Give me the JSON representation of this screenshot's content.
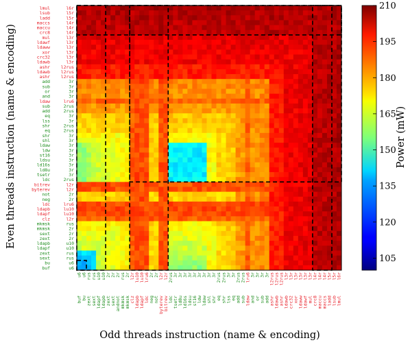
{
  "chart_data": {
    "type": "heatmap",
    "title": "",
    "xlabel": "Odd threads instruction (name & encoding)",
    "ylabel": "Even threads instruction (name & encoding)",
    "colorbar_label": "Power (mW)",
    "colorbar_range": [
      100,
      210
    ],
    "colorbar_ticks": [
      "105",
      "120",
      "135",
      "150",
      "165",
      "180",
      "195",
      "210"
    ],
    "colormap": "jet",
    "colors": {
      "group_a": "#e8202a",
      "group_b": "#1c8c1c",
      "dashed_box": "#000000"
    },
    "grid": false,
    "y_tick_labels_top_to_bottom": [
      {
        "name": "lmul",
        "enc": "l6r",
        "group": "a"
      },
      {
        "name": "lsub",
        "enc": "l5r",
        "group": "a"
      },
      {
        "name": "ladd",
        "enc": "l5r",
        "group": "a"
      },
      {
        "name": "maccs",
        "enc": "l4r",
        "group": "a"
      },
      {
        "name": "maccu",
        "enc": "l4r",
        "group": "a"
      },
      {
        "name": "crc8",
        "enc": "l4r",
        "group": "a"
      },
      {
        "name": "mul",
        "enc": "l3r",
        "group": "a"
      },
      {
        "name": "ldawf",
        "enc": "l3r",
        "group": "a"
      },
      {
        "name": "ldaww",
        "enc": "l3r",
        "group": "a"
      },
      {
        "name": "xor",
        "enc": "l3r",
        "group": "a"
      },
      {
        "name": "crc32",
        "enc": "l3r",
        "group": "a"
      },
      {
        "name": "ldawb",
        "enc": "l3r",
        "group": "a"
      },
      {
        "name": "ashr",
        "enc": "l2rus",
        "group": "a"
      },
      {
        "name": "ldawb",
        "enc": "l2rus",
        "group": "a"
      },
      {
        "name": "ashr",
        "enc": "l2rus",
        "group": "a"
      },
      {
        "name": "add",
        "enc": "3r",
        "group": "b"
      },
      {
        "name": "sub",
        "enc": "3r",
        "group": "b"
      },
      {
        "name": "or",
        "enc": "3r",
        "group": "b"
      },
      {
        "name": "and",
        "enc": "3r",
        "group": "b"
      },
      {
        "name": "ldaw",
        "enc": "lru6",
        "group": "a"
      },
      {
        "name": "sub",
        "enc": "2rus",
        "group": "b"
      },
      {
        "name": "add",
        "enc": "2rus",
        "group": "b"
      },
      {
        "name": "eq",
        "enc": "3r",
        "group": "b"
      },
      {
        "name": "lss",
        "enc": "3r",
        "group": "b"
      },
      {
        "name": "shr",
        "enc": "2rus",
        "group": "b"
      },
      {
        "name": "eq",
        "enc": "2rus",
        "group": "b"
      },
      {
        "name": "shr",
        "enc": "3r",
        "group": "b"
      },
      {
        "name": "shl",
        "enc": "3r",
        "group": "b"
      },
      {
        "name": "ldaw",
        "enc": "3r",
        "group": "b"
      },
      {
        "name": "ldw",
        "enc": "3r",
        "group": "b"
      },
      {
        "name": "st16",
        "enc": "3r",
        "group": "b"
      },
      {
        "name": "ldsu",
        "enc": "3r",
        "group": "b"
      },
      {
        "name": "ld16s",
        "enc": "3r",
        "group": "b"
      },
      {
        "name": "ld8u",
        "enc": "3r",
        "group": "b"
      },
      {
        "name": "tsetr",
        "enc": "3r",
        "group": "b"
      },
      {
        "name": "ldc",
        "enc": "2rus",
        "group": "b"
      },
      {
        "name": "bitrev",
        "enc": "l2r",
        "group": "a"
      },
      {
        "name": "byterev",
        "enc": "l2r",
        "group": "a"
      },
      {
        "name": "not",
        "enc": "2r",
        "group": "b"
      },
      {
        "name": "neg",
        "enc": "2r",
        "group": "b"
      },
      {
        "name": "ldc",
        "enc": "lru6",
        "group": "a"
      },
      {
        "name": "ldapb",
        "enc": "lu10",
        "group": "a"
      },
      {
        "name": "ldapf",
        "enc": "lu10",
        "group": "a"
      },
      {
        "name": "clz",
        "enc": "l2r",
        "group": "a"
      },
      {
        "name": "mkmsk",
        "enc": "rus",
        "group": "b"
      },
      {
        "name": "mkmsk",
        "enc": "2r",
        "group": "b"
      },
      {
        "name": "sext",
        "enc": "2r",
        "group": "b"
      },
      {
        "name": "zext",
        "enc": "2r",
        "group": "b"
      },
      {
        "name": "ldapb",
        "enc": "u10",
        "group": "b"
      },
      {
        "name": "ldapf",
        "enc": "u10",
        "group": "b"
      },
      {
        "name": "zext",
        "enc": "rus",
        "group": "b"
      },
      {
        "name": "sext",
        "enc": "rus",
        "group": "b"
      },
      {
        "name": "bu",
        "enc": "u6",
        "group": "b"
      },
      {
        "name": "buf",
        "enc": "u6",
        "group": "b"
      }
    ],
    "x_tick_labels_left_to_right": [
      {
        "name": "buf",
        "enc": "u6",
        "group": "b"
      },
      {
        "name": "bu",
        "enc": "u6",
        "group": "b"
      },
      {
        "name": "zext",
        "enc": "rus",
        "group": "b"
      },
      {
        "name": "sext",
        "enc": "rus",
        "group": "b"
      },
      {
        "name": "ldapf",
        "enc": "u10",
        "group": "b"
      },
      {
        "name": "ldapb",
        "enc": "u10",
        "group": "b"
      },
      {
        "name": "zext",
        "enc": "2r",
        "group": "b"
      },
      {
        "name": "sext",
        "enc": "2r",
        "group": "b"
      },
      {
        "name": "andnot",
        "enc": "2r",
        "group": "b"
      },
      {
        "name": "mkmsk",
        "enc": "rus",
        "group": "b"
      },
      {
        "name": "mkmsk",
        "enc": "2r",
        "group": "b"
      },
      {
        "name": "clz",
        "enc": "l2r",
        "group": "a"
      },
      {
        "name": "ldapb",
        "enc": "lu10",
        "group": "a"
      },
      {
        "name": "ldapf",
        "enc": "lu10",
        "group": "a"
      },
      {
        "name": "ldc",
        "enc": "lru6",
        "group": "a"
      },
      {
        "name": "neg",
        "enc": "2r",
        "group": "b"
      },
      {
        "name": "not",
        "enc": "2r",
        "group": "b"
      },
      {
        "name": "byterev",
        "enc": "l2r",
        "group": "a"
      },
      {
        "name": "bitrev",
        "enc": "l2r",
        "group": "a"
      },
      {
        "name": "ldc",
        "enc": "2rus",
        "group": "b"
      },
      {
        "name": "tsetr",
        "enc": "3r",
        "group": "b"
      },
      {
        "name": "ld8u",
        "enc": "3r",
        "group": "b"
      },
      {
        "name": "ld16s",
        "enc": "3r",
        "group": "b"
      },
      {
        "name": "ldsu",
        "enc": "3r",
        "group": "b"
      },
      {
        "name": "st16",
        "enc": "3r",
        "group": "b"
      },
      {
        "name": "ldw",
        "enc": "3r",
        "group": "b"
      },
      {
        "name": "ldaw",
        "enc": "3r",
        "group": "b"
      },
      {
        "name": "shl",
        "enc": "3r",
        "group": "b"
      },
      {
        "name": "shr",
        "enc": "3r",
        "group": "b"
      },
      {
        "name": "eq",
        "enc": "2rus",
        "group": "b"
      },
      {
        "name": "shr",
        "enc": "2rus",
        "group": "b"
      },
      {
        "name": "lss",
        "enc": "3r",
        "group": "b"
      },
      {
        "name": "eq",
        "enc": "3r",
        "group": "b"
      },
      {
        "name": "add",
        "enc": "2rus",
        "group": "b"
      },
      {
        "name": "sub",
        "enc": "2rus",
        "group": "b"
      },
      {
        "name": "ldaw",
        "enc": "lru6",
        "group": "a"
      },
      {
        "name": "and",
        "enc": "3r",
        "group": "b"
      },
      {
        "name": "or",
        "enc": "3r",
        "group": "b"
      },
      {
        "name": "sub",
        "enc": "3r",
        "group": "b"
      },
      {
        "name": "add",
        "enc": "3r",
        "group": "b"
      },
      {
        "name": "ashr",
        "enc": "l2rus",
        "group": "a"
      },
      {
        "name": "ldawb",
        "enc": "l2rus",
        "group": "a"
      },
      {
        "name": "ashr",
        "enc": "l2rus",
        "group": "a"
      },
      {
        "name": "ldawb",
        "enc": "l3r",
        "group": "a"
      },
      {
        "name": "crc32",
        "enc": "l3r",
        "group": "a"
      },
      {
        "name": "xor",
        "enc": "l3r",
        "group": "a"
      },
      {
        "name": "ldaww",
        "enc": "l3r",
        "group": "a"
      },
      {
        "name": "ldawf",
        "enc": "l3r",
        "group": "a"
      },
      {
        "name": "mul",
        "enc": "l3r",
        "group": "a"
      },
      {
        "name": "crc8",
        "enc": "l4r",
        "group": "a"
      },
      {
        "name": "maccu",
        "enc": "l4r",
        "group": "a"
      },
      {
        "name": "maccs",
        "enc": "l4r",
        "group": "a"
      },
      {
        "name": "ladd",
        "enc": "l5r",
        "group": "a"
      },
      {
        "name": "lsub",
        "enc": "l5r",
        "group": "a"
      },
      {
        "name": "lmul",
        "enc": "l6r",
        "group": "a"
      }
    ],
    "description_of_values": "Power in mW, approx 105-210. Rows/cols of the l3r-l6r group (top/right) ~195-210; 3r memory/compare group ~140-150; branch/ext group ~110-160.",
    "row_levels_top_to_bottom": [
      207,
      206,
      206,
      205,
      205,
      205,
      201,
      200,
      200,
      199,
      199,
      199,
      195,
      195,
      195,
      183,
      183,
      182,
      182,
      187,
      181,
      181,
      176,
      176,
      174,
      175,
      170,
      170,
      147,
      146,
      145,
      145,
      144,
      144,
      143,
      148,
      189,
      189,
      175,
      175,
      190,
      190,
      190,
      188,
      171,
      170,
      168,
      168,
      165,
      165,
      164,
      162,
      158,
      158
    ],
    "col_levels_left_to_right": [
      158,
      158,
      162,
      164,
      165,
      165,
      168,
      168,
      168,
      170,
      171,
      188,
      190,
      190,
      190,
      175,
      175,
      189,
      189,
      148,
      143,
      144,
      144,
      145,
      145,
      146,
      147,
      170,
      170,
      175,
      174,
      176,
      176,
      181,
      181,
      187,
      182,
      182,
      183,
      183,
      195,
      195,
      195,
      199,
      199,
      199,
      200,
      200,
      201,
      205,
      205,
      205,
      206,
      206,
      207
    ]
  }
}
